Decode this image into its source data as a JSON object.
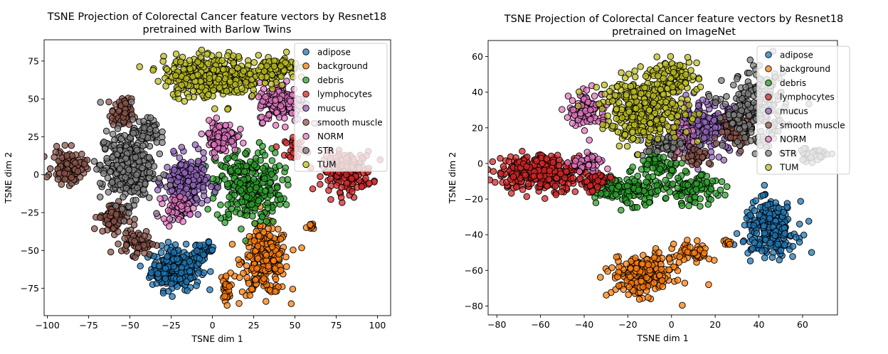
{
  "chart_data": [
    {
      "type": "scatter",
      "title": "TSNE Projection of Colorectal Cancer feature vectors by Resnet18",
      "subtitle": "pretrained with Barlow Twins",
      "xlabel": "TSNE dim 1",
      "ylabel": "TSNE dim 2",
      "xlim": [
        -102,
        108
      ],
      "ylim": [
        -93,
        89
      ],
      "xticks": [
        -100,
        -75,
        -50,
        -25,
        0,
        25,
        50,
        75,
        100
      ],
      "yticks": [
        -75,
        -50,
        -25,
        0,
        25,
        50,
        75
      ],
      "xtick_labels": [
        "−100",
        "−75",
        "−50",
        "−25",
        "0",
        "25",
        "50",
        "75",
        "100"
      ],
      "ytick_labels": [
        "−75",
        "−50",
        "−25",
        "0",
        "25",
        "50",
        "75"
      ],
      "grid": false,
      "legend_position": "top-right",
      "series": [
        {
          "name": "adipose",
          "color": "#1f77b4",
          "clusters": [
            {
              "cx": -22,
              "cy": -62,
              "rx": 15,
              "ry": 14,
              "n": 260
            },
            {
              "cx": -5,
              "cy": -50,
              "rx": 6,
              "ry": 5,
              "n": 35
            }
          ]
        },
        {
          "name": "background",
          "color": "#ff7f0e",
          "clusters": [
            {
              "cx": 32,
              "cy": -57,
              "rx": 14,
              "ry": 22,
              "n": 260
            },
            {
              "cx": 8,
              "cy": -75,
              "rx": 3,
              "ry": 10,
              "n": 30
            },
            {
              "cx": 60,
              "cy": -35,
              "rx": 3,
              "ry": 3,
              "n": 10
            }
          ]
        },
        {
          "name": "debris",
          "color": "#2ca02c",
          "clusters": [
            {
              "cx": 22,
              "cy": -8,
              "rx": 20,
              "ry": 25,
              "n": 300
            }
          ]
        },
        {
          "name": "lymphocytes",
          "color": "#d62728",
          "clusters": [
            {
              "cx": 82,
              "cy": 2,
              "rx": 15,
              "ry": 13,
              "n": 180
            },
            {
              "cx": 50,
              "cy": 18,
              "rx": 6,
              "ry": 6,
              "n": 30
            }
          ]
        },
        {
          "name": "mucus",
          "color": "#9467bd",
          "clusters": [
            {
              "cx": -16,
              "cy": -5,
              "rx": 13,
              "ry": 17,
              "n": 220
            }
          ]
        },
        {
          "name": "smooth muscle",
          "color": "#8c564b",
          "clusters": [
            {
              "cx": -87,
              "cy": 5,
              "rx": 10,
              "ry": 11,
              "n": 110
            },
            {
              "cx": -60,
              "cy": -28,
              "rx": 9,
              "ry": 10,
              "n": 90
            },
            {
              "cx": -55,
              "cy": 40,
              "rx": 6,
              "ry": 10,
              "n": 80
            },
            {
              "cx": -45,
              "cy": -45,
              "rx": 10,
              "ry": 8,
              "n": 60
            }
          ]
        },
        {
          "name": "NORM",
          "color": "#e377c2",
          "clusters": [
            {
              "cx": 42,
              "cy": 48,
              "rx": 14,
              "ry": 13,
              "n": 160
            },
            {
              "cx": 5,
              "cy": 25,
              "rx": 10,
              "ry": 10,
              "n": 120
            },
            {
              "cx": -22,
              "cy": -22,
              "rx": 8,
              "ry": 8,
              "n": 50
            }
          ]
        },
        {
          "name": "STR",
          "color": "#7f7f7f",
          "clusters": [
            {
              "cx": -52,
              "cy": 5,
              "rx": 16,
              "ry": 24,
              "n": 300
            },
            {
              "cx": -40,
              "cy": 28,
              "rx": 8,
              "ry": 8,
              "n": 60
            }
          ]
        },
        {
          "name": "TUM",
          "color": "#bcbd22",
          "clusters": [
            {
              "cx": 0,
              "cy": 65,
              "rx": 30,
              "ry": 14,
              "n": 360
            },
            {
              "cx": 40,
              "cy": 70,
              "rx": 12,
              "ry": 8,
              "n": 90
            }
          ]
        }
      ]
    },
    {
      "type": "scatter",
      "title": "TSNE Projection of Colorectal Cancer feature vectors by Resnet18",
      "subtitle": "pretrained on ImageNet",
      "xlabel": "TSNE dim 1",
      "ylabel": "TSNE dim 2",
      "xlim": [
        -84,
        76
      ],
      "ylim": [
        -85,
        69
      ],
      "xticks": [
        -80,
        -60,
        -40,
        -20,
        0,
        20,
        40,
        60
      ],
      "yticks": [
        -80,
        -60,
        -40,
        -20,
        0,
        20,
        40,
        60
      ],
      "xtick_labels": [
        "−80",
        "−60",
        "−40",
        "−20",
        "0",
        "20",
        "40",
        "60"
      ],
      "ytick_labels": [
        "−80",
        "−60",
        "−40",
        "−20",
        "0",
        "20",
        "40",
        "60"
      ],
      "grid": false,
      "legend_position": "top-right",
      "series": [
        {
          "name": "adipose",
          "color": "#1f77b4",
          "clusters": [
            {
              "cx": 45,
              "cy": -37,
              "rx": 12,
              "ry": 15,
              "n": 260
            }
          ]
        },
        {
          "name": "background",
          "color": "#ff7f0e",
          "clusters": [
            {
              "cx": -13,
              "cy": -63,
              "rx": 14,
              "ry": 11,
              "n": 240
            },
            {
              "cx": 10,
              "cy": -50,
              "rx": 8,
              "ry": 6,
              "n": 60
            },
            {
              "cx": 25,
              "cy": -45,
              "rx": 3,
              "ry": 3,
              "n": 10
            }
          ]
        },
        {
          "name": "debris",
          "color": "#2ca02c",
          "clusters": [
            {
              "cx": -20,
              "cy": -15,
              "rx": 15,
              "ry": 8,
              "n": 150
            },
            {
              "cx": 10,
              "cy": -15,
              "rx": 12,
              "ry": 8,
              "n": 100
            },
            {
              "cx": -5,
              "cy": 0,
              "rx": 10,
              "ry": 6,
              "n": 60
            }
          ]
        },
        {
          "name": "lymphocytes",
          "color": "#d62728",
          "clusters": [
            {
              "cx": -60,
              "cy": -5,
              "rx": 20,
              "ry": 10,
              "n": 330
            },
            {
              "cx": -35,
              "cy": -10,
              "rx": 7,
              "ry": 6,
              "n": 50
            }
          ]
        },
        {
          "name": "mucus",
          "color": "#9467bd",
          "clusters": [
            {
              "cx": 15,
              "cy": 20,
              "rx": 17,
              "ry": 14,
              "n": 230
            }
          ]
        },
        {
          "name": "smooth muscle",
          "color": "#8c564b",
          "clusters": [
            {
              "cx": 30,
              "cy": 20,
              "rx": 8,
              "ry": 10,
              "n": 80
            },
            {
              "cx": 10,
              "cy": 5,
              "rx": 8,
              "ry": 6,
              "n": 40
            }
          ]
        },
        {
          "name": "NORM",
          "color": "#e377c2",
          "clusters": [
            {
              "cx": -38,
              "cy": 30,
              "rx": 9,
              "ry": 10,
              "n": 110
            },
            {
              "cx": -38,
              "cy": 0,
              "rx": 8,
              "ry": 6,
              "n": 40
            },
            {
              "cx": 5,
              "cy": 15,
              "rx": 6,
              "ry": 6,
              "n": 30
            }
          ]
        },
        {
          "name": "STR",
          "color": "#7f7f7f",
          "clusters": [
            {
              "cx": 38,
              "cy": 30,
              "rx": 14,
              "ry": 20,
              "n": 230
            },
            {
              "cx": 65,
              "cy": 5,
              "rx": 8,
              "ry": 4,
              "n": 45
            },
            {
              "cx": -5,
              "cy": 10,
              "rx": 10,
              "ry": 6,
              "n": 60
            }
          ]
        },
        {
          "name": "TUM",
          "color": "#bcbd22",
          "clusters": [
            {
              "cx": -12,
              "cy": 30,
              "rx": 20,
              "ry": 17,
              "n": 330
            },
            {
              "cx": 0,
              "cy": 48,
              "rx": 12,
              "ry": 10,
              "n": 110
            }
          ]
        }
      ]
    }
  ]
}
